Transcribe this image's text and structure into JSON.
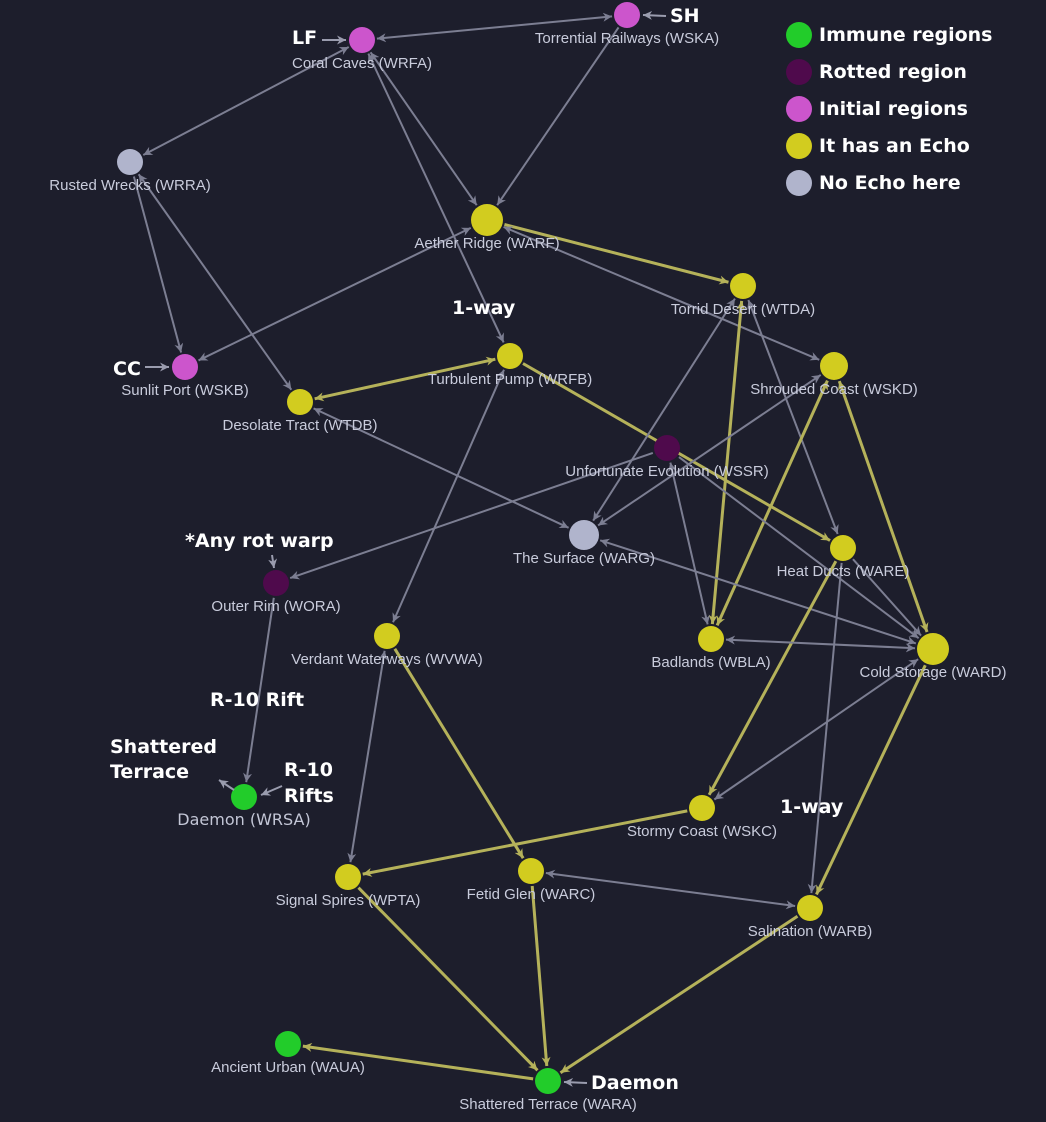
{
  "colors": {
    "background": "#1d1e2c",
    "immune": "#22cc2a",
    "rotted": "#4f0a4c",
    "initial": "#cc55cc",
    "echo": "#d2cc1f",
    "no_echo": "#b0b4cc",
    "edge_default": "#7c7e92",
    "edge_echo": "#b5b25a"
  },
  "legend": [
    {
      "type": "immune",
      "label": "Immune regions"
    },
    {
      "type": "rotted",
      "label": "Rotted region"
    },
    {
      "type": "initial",
      "label": "Initial regions"
    },
    {
      "type": "echo",
      "label": "It has an Echo"
    },
    {
      "type": "no_echo",
      "label": "No Echo here"
    }
  ],
  "nodes": [
    {
      "id": "WRFA",
      "label": "Coral Caves (WRFA)",
      "type": "initial"
    },
    {
      "id": "WSKA",
      "label": "Torrential Railways (WSKA)",
      "type": "initial"
    },
    {
      "id": "WRRA",
      "label": "Rusted Wrecks (WRRA)",
      "type": "no_echo"
    },
    {
      "id": "WARF",
      "label": "Aether Ridge (WARF)",
      "type": "echo"
    },
    {
      "id": "WTDA",
      "label": "Torrid Desert (WTDA)",
      "type": "echo"
    },
    {
      "id": "WRFB",
      "label": "Turbulent Pump (WRFB)",
      "type": "echo"
    },
    {
      "id": "WSKB",
      "label": "Sunlit Port (WSKB)",
      "type": "initial"
    },
    {
      "id": "WTDB",
      "label": "Desolate Tract (WTDB)",
      "type": "echo"
    },
    {
      "id": "WSKD",
      "label": "Shrouded Coast (WSKD)",
      "type": "echo"
    },
    {
      "id": "WSSR",
      "label": "Unfortunate Evolution (WSSR)",
      "type": "rotted"
    },
    {
      "id": "WARG",
      "label": "The Surface (WARG)",
      "type": "no_echo"
    },
    {
      "id": "WARE",
      "label": "Heat Ducts (WARE)",
      "type": "echo"
    },
    {
      "id": "WORA",
      "label": "Outer Rim (WORA)",
      "type": "rotted"
    },
    {
      "id": "WVWA",
      "label": "Verdant Waterways (WVWA)",
      "type": "echo"
    },
    {
      "id": "WBLA",
      "label": "Badlands (WBLA)",
      "type": "echo"
    },
    {
      "id": "WARD",
      "label": "Cold Storage (WARD)",
      "type": "echo"
    },
    {
      "id": "WRSA",
      "label": "Daemon (WRSA)",
      "type": "immune"
    },
    {
      "id": "WSKC",
      "label": "Stormy Coast (WSKC)",
      "type": "echo"
    },
    {
      "id": "WPTA",
      "label": "Signal Spires (WPTA)",
      "type": "echo"
    },
    {
      "id": "WARC",
      "label": "Fetid Glen (WARC)",
      "type": "echo"
    },
    {
      "id": "WARB",
      "label": "Salination (WARB)",
      "type": "echo"
    },
    {
      "id": "WAUA",
      "label": "Ancient Urban (WAUA)",
      "type": "immune"
    },
    {
      "id": "WARA",
      "label": "Shattered Terrace (WARA)",
      "type": "immune"
    }
  ],
  "edges": [
    {
      "from": "WRFA",
      "to": "WSKA",
      "dir": "both",
      "echo": false
    },
    {
      "from": "WRFA",
      "to": "WRRA",
      "dir": "both",
      "echo": false
    },
    {
      "from": "WRFA",
      "to": "WARF",
      "dir": "both",
      "echo": false
    },
    {
      "from": "WRFA",
      "to": "WRFB",
      "dir": "both",
      "echo": false
    },
    {
      "from": "WSKA",
      "to": "WARF",
      "dir": "forward",
      "echo": false
    },
    {
      "from": "WRRA",
      "to": "WSKB",
      "dir": "forward",
      "echo": false
    },
    {
      "from": "WRRA",
      "to": "WTDB",
      "dir": "both",
      "echo": false
    },
    {
      "from": "WARF",
      "to": "WSKB",
      "dir": "both",
      "echo": false
    },
    {
      "from": "WARF",
      "to": "WTDA",
      "dir": "forward",
      "echo": true
    },
    {
      "from": "WARF",
      "to": "WSKD",
      "dir": "both",
      "echo": false
    },
    {
      "from": "WTDB",
      "to": "WRFB",
      "dir": "both",
      "echo": true
    },
    {
      "from": "WRFB",
      "to": "WARE",
      "dir": "forward",
      "echo": true
    },
    {
      "from": "WVWA",
      "to": "WRFB",
      "dir": "both",
      "echo": false
    },
    {
      "from": "WTDA",
      "to": "WARG",
      "dir": "both",
      "echo": false
    },
    {
      "from": "WTDA",
      "to": "WBLA",
      "dir": "both",
      "echo": true
    },
    {
      "from": "WTDA",
      "to": "WARE",
      "dir": "both",
      "echo": false
    },
    {
      "from": "WSKD",
      "to": "WARG",
      "dir": "both",
      "echo": false
    },
    {
      "from": "WSKD",
      "to": "WBLA",
      "dir": "both",
      "echo": true
    },
    {
      "from": "WSKD",
      "to": "WARD",
      "dir": "both",
      "echo": true
    },
    {
      "from": "WSSR",
      "to": "WORA",
      "dir": "forward",
      "echo": false
    },
    {
      "from": "WSSR",
      "to": "WBLA",
      "dir": "both",
      "echo": false
    },
    {
      "from": "WSSR",
      "to": "WARD",
      "dir": "forward",
      "echo": false
    },
    {
      "from": "WTDB",
      "to": "WARG",
      "dir": "both",
      "echo": false
    },
    {
      "from": "WARG",
      "to": "WARD",
      "dir": "both",
      "echo": false
    },
    {
      "from": "WARE",
      "to": "WSKC",
      "dir": "forward",
      "echo": true
    },
    {
      "from": "WARE",
      "to": "WARB",
      "dir": "forward",
      "echo": false
    },
    {
      "from": "WARE",
      "to": "WARD",
      "dir": "forward",
      "echo": false
    },
    {
      "from": "WBLA",
      "to": "WARD",
      "dir": "both",
      "echo": false
    },
    {
      "from": "WARD",
      "to": "WSKC",
      "dir": "both",
      "echo": false
    },
    {
      "from": "WARD",
      "to": "WARB",
      "dir": "forward",
      "echo": true
    },
    {
      "from": "WORA",
      "to": "WRSA",
      "dir": "forward",
      "echo": false
    },
    {
      "from": "WVWA",
      "to": "WPTA",
      "dir": "both",
      "echo": false
    },
    {
      "from": "WVWA",
      "to": "WARC",
      "dir": "forward",
      "echo": true
    },
    {
      "from": "WSKC",
      "to": "WPTA",
      "dir": "forward",
      "echo": true
    },
    {
      "from": "WARC",
      "to": "WARB",
      "dir": "both",
      "echo": false
    },
    {
      "from": "WPTA",
      "to": "WARA",
      "dir": "forward",
      "echo": true
    },
    {
      "from": "WARC",
      "to": "WARA",
      "dir": "forward",
      "echo": true
    },
    {
      "from": "WARB",
      "to": "WARA",
      "dir": "forward",
      "echo": true
    },
    {
      "from": "WARA",
      "to": "WAUA",
      "dir": "forward",
      "echo": true
    }
  ],
  "annotations": [
    {
      "id": "lf",
      "text": "LF",
      "target": "WRFA"
    },
    {
      "id": "sh",
      "text": "SH",
      "target": "WSKA"
    },
    {
      "id": "cc",
      "text": "CC",
      "target": "WSKB"
    },
    {
      "id": "one-way-pump",
      "text": "1-way"
    },
    {
      "id": "any-rot-warp",
      "text": "*Any rot warp",
      "target": "WORA"
    },
    {
      "id": "r10-rift",
      "text": "R-10 Rift"
    },
    {
      "id": "shattered-terrace-exit",
      "lines": [
        "Shattered",
        "Terrace"
      ]
    },
    {
      "id": "r10-rifts",
      "lines": [
        "R-10",
        "Rifts"
      ],
      "target": "WRSA"
    },
    {
      "id": "one-way-salination",
      "text": "1-way"
    },
    {
      "id": "daemon",
      "text": "Daemon",
      "target": "WARA"
    }
  ]
}
